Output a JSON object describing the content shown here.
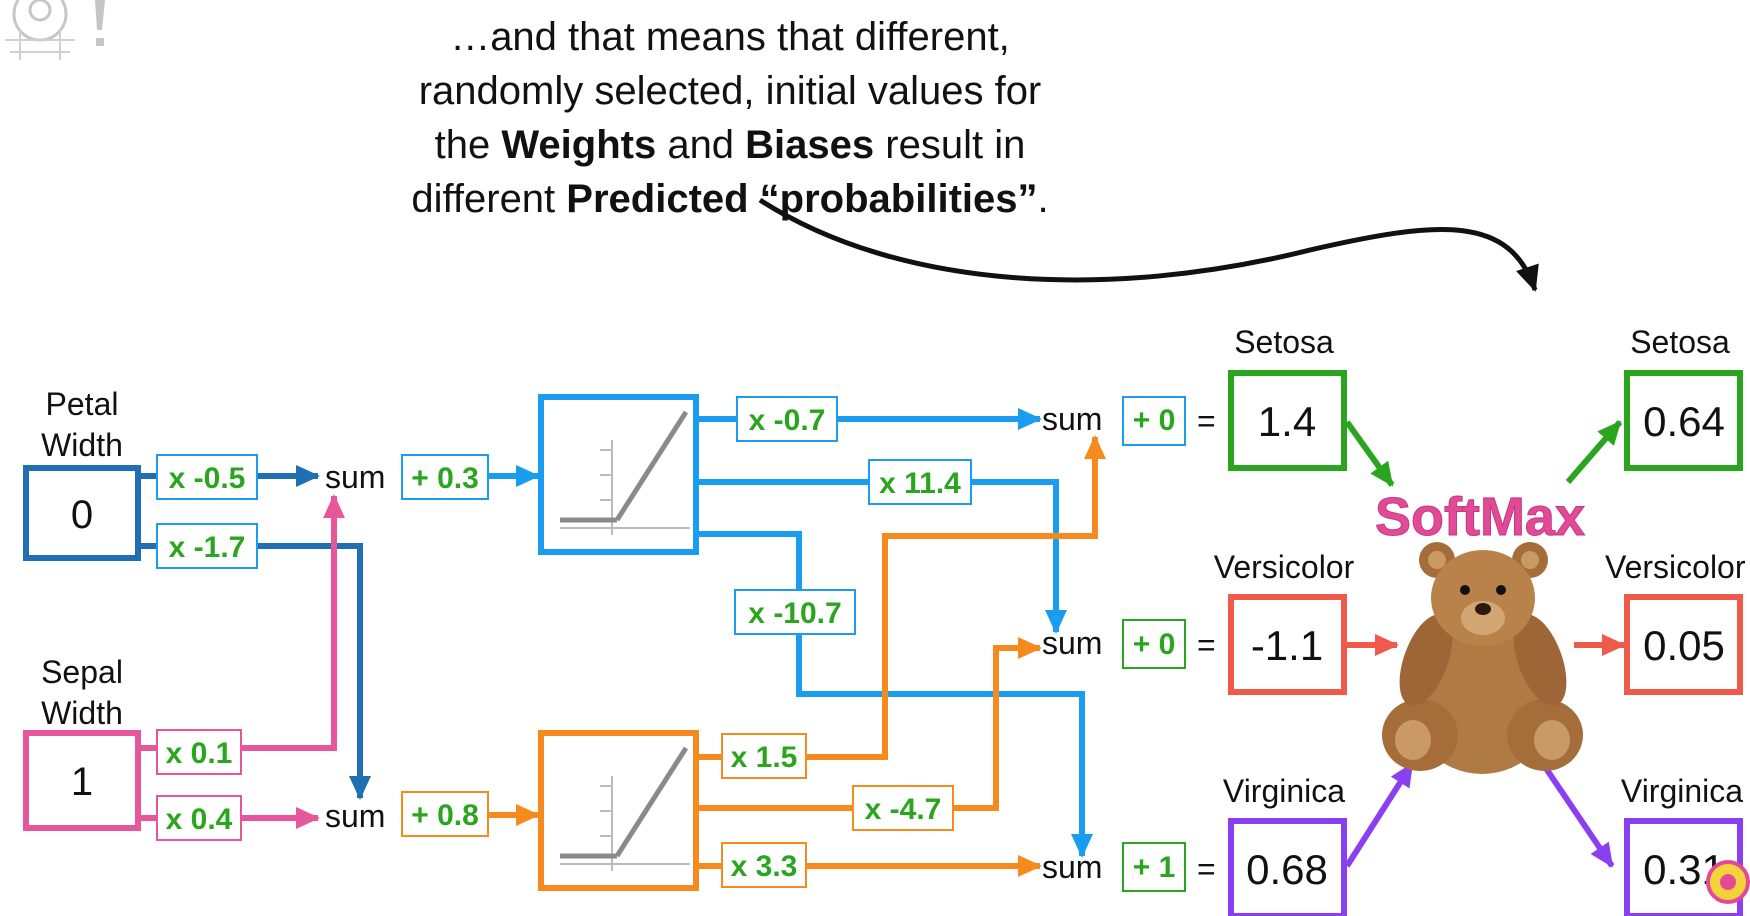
{
  "caption": {
    "line1": "…and that means that different,",
    "line2": "randomly selected, initial values for",
    "line3_a": "the ",
    "line3_b": "Weights",
    "line3_c": " and ",
    "line3_d": "Biases",
    "line3_e": " result in",
    "line4_a": "different ",
    "line4_b": "Predicted “probabilities”",
    "line4_c": "."
  },
  "inputs": {
    "petal_label_1": "Petal",
    "petal_label_2": "Width",
    "petal_value": "0",
    "sepal_label_1": "Sepal",
    "sepal_label_2": "Width",
    "sepal_value": "1"
  },
  "weights": {
    "w_petal_top": "x -0.5",
    "w_petal_bottom": "x -1.7",
    "w_sepal_top": "x 0.1",
    "w_sepal_bottom": "x 0.4",
    "w_n1_setosa": "x -0.7",
    "w_n1_versicolor": "x 11.4",
    "w_n1_virginica": "x -10.7",
    "w_n2_setosa": "x 1.5",
    "w_n2_versicolor": "x -4.7",
    "w_n2_virginica": "x 3.3"
  },
  "hidden": {
    "sum_label": "sum",
    "bias_top": "+ 0.3",
    "bias_bottom": "+ 0.8"
  },
  "outputs": {
    "sum_label": "sum",
    "equals": "=",
    "setosa": {
      "label": "Setosa",
      "bias": "+ 0",
      "raw": "1.4",
      "prob": "0.64"
    },
    "versicolor": {
      "label": "Versicolor",
      "bias": "+ 0",
      "raw": "-1.1",
      "prob": "0.05"
    },
    "virginica": {
      "label": "Virginica",
      "bias": "+ 1",
      "raw": "0.68",
      "prob": "0.31"
    }
  },
  "softmax_label": "SoftMax",
  "colors": {
    "blue_dark": "#1f6fb2",
    "blue": "#1a9cf0",
    "pink": "#e5569a",
    "orange": "#f58a1f",
    "green": "#2aa51e",
    "red": "#f05a4a",
    "purple": "#8a3ff0",
    "gray": "#8a8a8a",
    "softmax": "#e24a98"
  }
}
